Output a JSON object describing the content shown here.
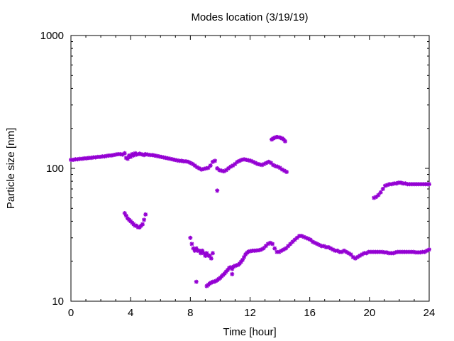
{
  "chart_data": {
    "type": "scatter",
    "title": "Modes location (3/19/19)",
    "xlabel": "Time [hour]",
    "ylabel": "Particle size [nm]",
    "xlim": [
      0,
      24
    ],
    "ylim": [
      10,
      1000
    ],
    "yscale": "log",
    "xticks": [
      0,
      4,
      8,
      12,
      16,
      20,
      24
    ],
    "yticks": [
      10,
      100,
      1000
    ],
    "xtick_labels": [
      "0",
      "4",
      "8",
      "12",
      "16",
      "20",
      "24"
    ],
    "ytick_labels": [
      "10",
      "100",
      "1000"
    ],
    "grid": false,
    "marker_color": "#9400d3",
    "series": [
      {
        "x": [
          0.0,
          0.15,
          0.3,
          0.45,
          0.6,
          0.75,
          0.9,
          1.05,
          1.2,
          1.35,
          1.5,
          1.65,
          1.8,
          1.95,
          2.1,
          2.25,
          2.4,
          2.55,
          2.7,
          2.85,
          3.0,
          3.15,
          3.3,
          3.45,
          3.6,
          3.7,
          3.8,
          3.9,
          4.0,
          4.1,
          4.2,
          4.3,
          4.4,
          4.5,
          4.6,
          4.7,
          4.8,
          4.9,
          5.0,
          5.15,
          5.3,
          5.45,
          5.6,
          5.75,
          5.9,
          6.05,
          6.2,
          6.35,
          6.5,
          6.65,
          6.8,
          6.95,
          7.1,
          7.25,
          7.4,
          7.55,
          7.7,
          7.85,
          8.0,
          8.15,
          8.3,
          8.45,
          8.6,
          8.75,
          8.9,
          9.05,
          9.2,
          9.35,
          9.5,
          9.65,
          9.8,
          9.95,
          10.1,
          10.25,
          10.4,
          10.55,
          10.7,
          10.85,
          11.0,
          11.15,
          11.3,
          11.45,
          11.6,
          11.75,
          11.9,
          12.05,
          12.2,
          12.35,
          12.5,
          12.65,
          12.8,
          12.95,
          13.1,
          13.25,
          13.4,
          13.55,
          13.7,
          13.85,
          14.0,
          14.15,
          14.3,
          14.45
        ],
        "y": [
          116,
          116,
          117,
          117,
          118,
          118,
          119,
          119,
          120,
          120,
          121,
          121,
          122,
          122,
          123,
          123,
          124,
          125,
          125,
          126,
          127,
          128,
          128,
          127,
          130,
          120,
          118,
          125,
          122,
          128,
          125,
          130,
          127,
          128,
          129,
          128,
          127,
          126,
          128,
          127,
          126,
          126,
          125,
          124,
          123,
          122,
          121,
          120,
          119,
          118,
          117,
          116,
          115,
          114,
          114,
          113,
          113,
          112,
          110,
          108,
          105,
          102,
          100,
          98,
          99,
          100,
          101,
          105,
          112,
          114,
          100,
          97,
          96,
          95,
          97,
          100,
          103,
          105,
          108,
          112,
          114,
          116,
          117,
          116,
          115,
          114,
          112,
          110,
          108,
          107,
          106,
          108,
          110,
          112,
          110,
          106,
          104,
          103,
          101,
          98,
          96,
          94
        ]
      },
      {
        "x": [
          9.8
        ],
        "y": [
          68
        ]
      },
      {
        "x": [
          13.45,
          13.55,
          13.65,
          13.75,
          13.85,
          13.95,
          14.05,
          14.15,
          14.25,
          14.35
        ],
        "y": [
          165,
          168,
          170,
          172,
          172,
          171,
          170,
          168,
          165,
          160
        ]
      },
      {
        "x": [
          3.6,
          3.7,
          3.8,
          3.9,
          4.0,
          4.1,
          4.2,
          4.3,
          4.4,
          4.5,
          4.6,
          4.7,
          4.8,
          4.9,
          5.0
        ],
        "y": [
          46,
          44,
          42,
          41,
          40,
          39,
          38,
          37,
          37,
          36,
          36,
          37,
          38,
          41,
          45
        ]
      },
      {
        "x": [
          8.0,
          8.1,
          8.2,
          8.3,
          8.4,
          8.5,
          8.6,
          8.7,
          8.8,
          8.9,
          9.0,
          9.1,
          9.2,
          9.3,
          9.4,
          9.5
        ],
        "y": [
          30,
          27,
          25,
          24,
          25,
          24,
          24,
          23,
          24,
          23,
          22,
          23,
          22,
          22,
          21,
          23
        ]
      },
      {
        "x": [
          8.4
        ],
        "y": [
          14
        ]
      },
      {
        "x": [
          9.1,
          9.2,
          9.3,
          9.4,
          9.5,
          9.6,
          9.7,
          9.8,
          9.9,
          10.0,
          10.1,
          10.2,
          10.3,
          10.4,
          10.5,
          10.6,
          10.7,
          10.8,
          10.9,
          11.0,
          11.1,
          11.2,
          11.3,
          11.4,
          11.5,
          11.6,
          11.7,
          11.8,
          11.9,
          12.0,
          12.15,
          12.3,
          12.45,
          12.6,
          12.75,
          12.9,
          13.05,
          13.2,
          13.35,
          13.5,
          13.65,
          13.8,
          13.95,
          14.1,
          14.25,
          14.4,
          14.55,
          14.7,
          14.85,
          15.0,
          15.15,
          15.3,
          15.45,
          15.6,
          15.75,
          15.9,
          16.05,
          16.2,
          16.35,
          16.5,
          16.65,
          16.8,
          16.95,
          17.1,
          17.25,
          17.4,
          17.55,
          17.7,
          17.85,
          18.0,
          18.15,
          18.3,
          18.45,
          18.6,
          18.75,
          18.9,
          19.05,
          19.2,
          19.35,
          19.5,
          19.65,
          19.8,
          19.95,
          20.1,
          20.25,
          20.4,
          20.55,
          20.7,
          20.85,
          21.0,
          21.15,
          21.3,
          21.45,
          21.6,
          21.75,
          21.9,
          22.05,
          22.2,
          22.35,
          22.5,
          22.65,
          22.8,
          22.95,
          23.1,
          23.25,
          23.4,
          23.55,
          23.7,
          23.85,
          24.0
        ],
        "y": [
          13,
          13.3,
          13.6,
          13.8,
          14,
          14,
          14.2,
          14.4,
          14.7,
          15,
          15.4,
          15.8,
          16.2,
          16.7,
          17.2,
          17.8,
          18,
          17.5,
          18.2,
          18.5,
          18.6,
          18.8,
          19.2,
          19.8,
          20.5,
          21.5,
          22.5,
          23.2,
          23.6,
          23.8,
          24,
          24,
          24.1,
          24.2,
          24.5,
          25,
          26,
          27,
          27.5,
          27,
          25,
          23.5,
          23.5,
          24,
          24.5,
          25,
          26,
          27,
          28,
          29,
          30,
          31,
          31,
          30.5,
          30,
          29.5,
          29,
          28,
          27.5,
          27,
          26.5,
          26,
          26,
          25.5,
          25.5,
          25,
          24.5,
          24,
          24,
          23.5,
          23.5,
          24,
          23.5,
          23,
          22.5,
          21.5,
          21,
          21.5,
          22,
          22.5,
          23,
          23,
          23.5,
          23.5,
          23.5,
          23.5,
          23.5,
          23.5,
          23.5,
          23.3,
          23.3,
          23,
          23,
          23,
          23.3,
          23.5,
          23.5,
          23.5,
          23.5,
          23.5,
          23.5,
          23.5,
          23.5,
          23.3,
          23.3,
          23.3,
          23.5,
          23.5,
          24,
          24.5
        ]
      },
      {
        "x": [
          10.8
        ],
        "y": [
          16
        ]
      },
      {
        "x": [
          20.3,
          20.45,
          20.6,
          20.75,
          20.9,
          21.05,
          21.2,
          21.35,
          21.5,
          21.65,
          21.8,
          21.95,
          22.1,
          22.25,
          22.4,
          22.55,
          22.7,
          22.85,
          23.0,
          23.15,
          23.3,
          23.45,
          23.6,
          23.75,
          23.9,
          24.0
        ],
        "y": [
          60,
          61,
          63,
          66,
          70,
          74,
          75,
          76,
          76,
          77,
          77,
          78,
          78,
          77,
          77,
          76,
          76,
          76,
          76,
          76,
          76,
          76,
          76,
          76,
          76,
          76
        ]
      }
    ]
  }
}
